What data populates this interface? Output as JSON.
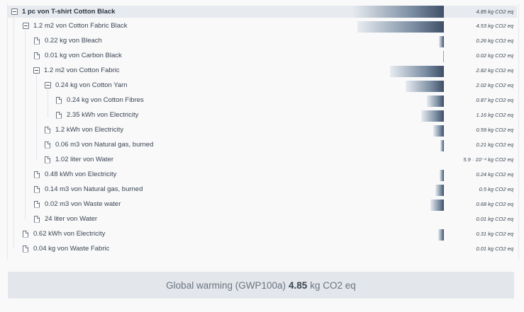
{
  "rows": [
    {
      "label": "1 pc von T-shirt Cotton Black",
      "value": "4.85 kg CO2 eq"
    },
    {
      "label": "1.2 m2 von Cotton Fabric Black",
      "value": "4.53 kg CO2 eq"
    },
    {
      "label": "0.22 kg von Bleach",
      "value": "0.26 kg CO2 eq"
    },
    {
      "label": "0.01 kg von Carbon Black",
      "value": "0.02 kg CO2 eq"
    },
    {
      "label": "1.2 m2 von Cotton Fabric",
      "value": "2.82 kg CO2 eq"
    },
    {
      "label": "0.24 kg von Cotton Yarn",
      "value": "2.02 kg CO2 eq"
    },
    {
      "label": "0.24 kg von Cotton Fibres",
      "value": "0.87 kg CO2 eq"
    },
    {
      "label": "2.35 kWh von Electricity",
      "value": "1.16 kg CO2 eq"
    },
    {
      "label": "1.2 kWh von Electricity",
      "value": "0.59 kg CO2 eq"
    },
    {
      "label": "0.06 m3 von Natural gas, burned",
      "value": "0.21 kg CO2 eq"
    },
    {
      "label": "1.02 liter von Water",
      "value": "5.9 · 10⁻⁴ kg CO2 eq"
    },
    {
      "label": "0.48 kWh von Electricity",
      "value": "0.24 kg CO2 eq"
    },
    {
      "label": "0.14 m3 von Natural gas, burned",
      "value": "0.5 kg CO2 eq"
    },
    {
      "label": "0.02 m3 von Waste water",
      "value": "0.68 kg CO2 eq"
    },
    {
      "label": "24 liter von Water",
      "value": "0.01 kg CO2 eq"
    },
    {
      "label": "0.62 kWh von Electricity",
      "value": "0.31 kg CO2 eq"
    },
    {
      "label": "0.04 kg von Waste Fabric",
      "value": "0.01 kg CO2 eq"
    }
  ],
  "summary": {
    "prefix": "Global warming (GWP100a)",
    "value": "4.85",
    "unit": "kg CO2 eq"
  },
  "colors": {
    "bar_dark": "#3e4f66",
    "bar_light": "#e8ecf1",
    "root_bg": "#e7eaee"
  }
}
